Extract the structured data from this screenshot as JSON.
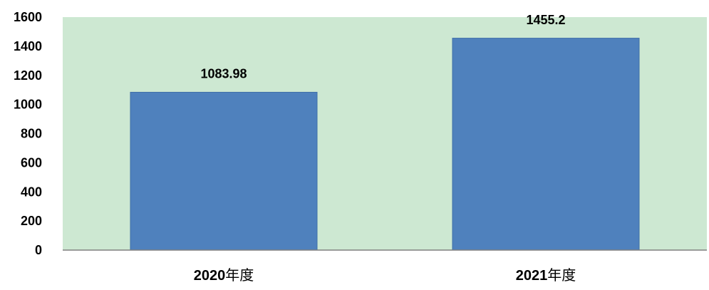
{
  "chart_data": {
    "type": "bar",
    "categories": [
      "2020年度",
      "2021年度"
    ],
    "category_parts": [
      {
        "number": "2020",
        "suffix": "年度"
      },
      {
        "number": "2021",
        "suffix": "年度"
      }
    ],
    "values": [
      1083.98,
      1455.2
    ],
    "value_labels": [
      "1083.98",
      "1455.2"
    ],
    "title": "",
    "xlabel": "",
    "ylabel": "",
    "ylim": [
      0,
      1600
    ],
    "yticks": [
      0,
      200,
      400,
      600,
      800,
      1000,
      1200,
      1400,
      1600
    ],
    "grid": false,
    "legend": "none"
  },
  "colors": {
    "plot_background": "#cde8d2",
    "bar_fill": "#4f81bd",
    "bar_edge": "#3f6fa8",
    "axis": "#808080"
  }
}
